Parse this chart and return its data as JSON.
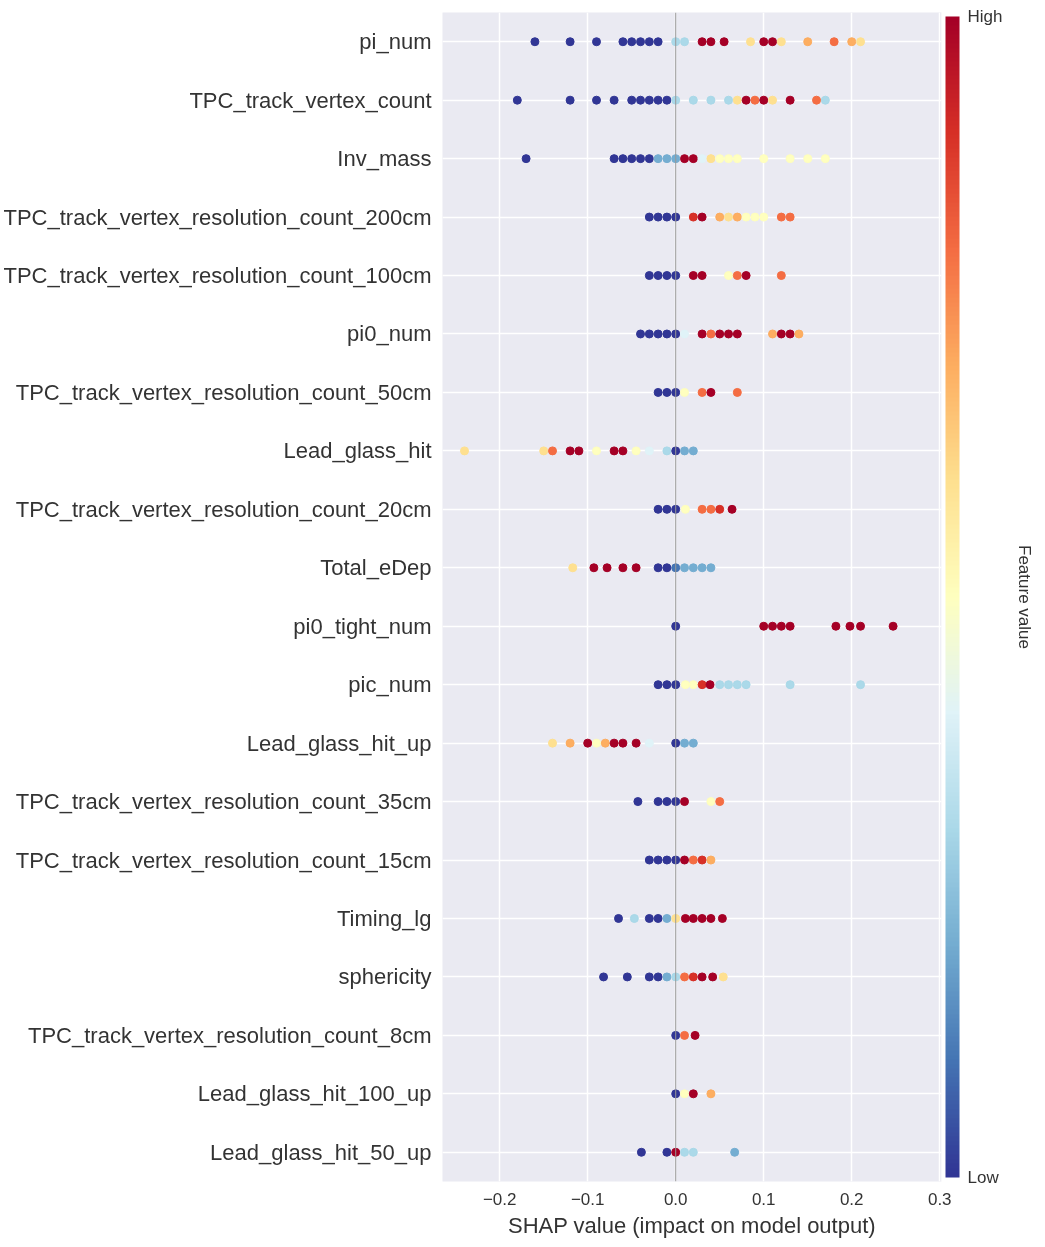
{
  "chart_data": {
    "type": "scatter",
    "orientation": "horizontal",
    "xlabel": "SHAP value (impact on model output)",
    "clabel": "Feature value",
    "categories": [
      "pi_num",
      "TPC_track_vertex_count",
      "Inv_mass",
      "TPC_track_vertex_resolution_count_200cm",
      "TPC_track_vertex_resolution_count_100cm",
      "pi0_num",
      "TPC_track_vertex_resolution_count_50cm",
      "Lead_glass_hit",
      "TPC_track_vertex_resolution_count_20cm",
      "Total_eDep",
      "pi0_tight_num",
      "pic_num",
      "Lead_glass_hit_up",
      "TPC_track_vertex_resolution_count_35cm",
      "TPC_track_vertex_resolution_count_15cm",
      "Timing_lg",
      "sphericity",
      "TPC_track_vertex_resolution_count_8cm",
      "Lead_glass_hit_100_up",
      "Lead_glass_hit_50_up"
    ],
    "series": [
      {
        "x": [
          "pi_num",
          "pi_num",
          "pi_num",
          "pi_num",
          "pi_num",
          "pi_num",
          "pi_num",
          "pi_num",
          "pi_num",
          "pi_num",
          "pi_num",
          "pi_num",
          "pi_num",
          "pi_num",
          "pi_num",
          "pi_num",
          "pi_num",
          "pi_num",
          "pi_num",
          "pi_num",
          "pi_num"
        ],
        "values": [
          -0.16,
          -0.12,
          -0.09,
          -0.06,
          -0.05,
          -0.04,
          -0.03,
          -0.02,
          0.0,
          0.01,
          0.03,
          0.04,
          0.055,
          0.085,
          0.1,
          0.11,
          0.12,
          0.15,
          0.18,
          0.2,
          0.21
        ],
        "cvalues": [
          0,
          0,
          0,
          0,
          0,
          0,
          0,
          0,
          0.3,
          0.3,
          1,
          1,
          1,
          0.6,
          1,
          1,
          0.6,
          0.7,
          0.8,
          0.7,
          0.6
        ],
        "colors": [
          "#313695",
          "#313695",
          "#313695",
          "#313695",
          "#313695",
          "#313695",
          "#313695",
          "#313695",
          "#abd9e9",
          "#abd9e9",
          "#a50026",
          "#a50026",
          "#a50026",
          "#fee090",
          "#a50026",
          "#a50026",
          "#fee090",
          "#fdae61",
          "#f46d43",
          "#fdae61",
          "#fee090"
        ]
      },
      {
        "x": [
          "TPC_track_vertex_count",
          "TPC_track_vertex_count",
          "TPC_track_vertex_count",
          "TPC_track_vertex_count",
          "TPC_track_vertex_count",
          "TPC_track_vertex_count",
          "TPC_track_vertex_count",
          "TPC_track_vertex_count",
          "TPC_track_vertex_count",
          "TPC_track_vertex_count",
          "TPC_track_vertex_count",
          "TPC_track_vertex_count",
          "TPC_track_vertex_count",
          "TPC_track_vertex_count",
          "TPC_track_vertex_count",
          "TPC_track_vertex_count",
          "TPC_track_vertex_count",
          "TPC_track_vertex_count",
          "TPC_track_vertex_count",
          "TPC_track_vertex_count",
          "TPC_track_vertex_count"
        ],
        "values": [
          -0.18,
          -0.12,
          -0.09,
          -0.07,
          -0.05,
          -0.04,
          -0.03,
          -0.02,
          -0.01,
          0.0,
          0.02,
          0.04,
          0.06,
          0.07,
          0.08,
          0.09,
          0.1,
          0.11,
          0.13,
          0.16,
          0.17
        ],
        "cvalues": [
          0,
          0,
          0,
          0,
          0,
          0,
          0,
          0,
          0,
          0.3,
          0.3,
          0.3,
          0.3,
          0.6,
          1,
          0.8,
          1,
          0.6,
          1,
          0.8,
          0.3
        ],
        "colors": [
          "#313695",
          "#313695",
          "#313695",
          "#313695",
          "#313695",
          "#313695",
          "#313695",
          "#313695",
          "#313695",
          "#abd9e9",
          "#abd9e9",
          "#abd9e9",
          "#abd9e9",
          "#fee090",
          "#a50026",
          "#f46d43",
          "#a50026",
          "#fee090",
          "#a50026",
          "#f46d43",
          "#abd9e9"
        ]
      },
      {
        "x": [
          "Inv_mass",
          "Inv_mass",
          "Inv_mass",
          "Inv_mass",
          "Inv_mass",
          "Inv_mass",
          "Inv_mass",
          "Inv_mass",
          "Inv_mass",
          "Inv_mass",
          "Inv_mass",
          "Inv_mass",
          "Inv_mass",
          "Inv_mass",
          "Inv_mass",
          "Inv_mass",
          "Inv_mass",
          "Inv_mass",
          "Inv_mass",
          "Inv_mass"
        ],
        "values": [
          -0.17,
          -0.07,
          -0.06,
          -0.05,
          -0.04,
          -0.03,
          -0.02,
          -0.01,
          0.0,
          0.01,
          0.02,
          0.03,
          0.04,
          0.05,
          0.06,
          0.07,
          0.1,
          0.13,
          0.15,
          0.17
        ],
        "cvalues": [
          0,
          0,
          0,
          0,
          0,
          0,
          0.2,
          0.2,
          0.2,
          1,
          1,
          0.4,
          0.6,
          0.5,
          0.5,
          0.5,
          0.5,
          0.5,
          0.5,
          0.5
        ],
        "colors": [
          "#313695",
          "#313695",
          "#313695",
          "#313695",
          "#313695",
          "#313695",
          "#74add1",
          "#74add1",
          "#74add1",
          "#a50026",
          "#a50026",
          "#e0f3f8",
          "#fee090",
          "#ffffbf",
          "#ffffbf",
          "#ffffbf",
          "#ffffbf",
          "#ffffbf",
          "#ffffbf",
          "#ffffbf"
        ]
      },
      {
        "x": [
          "TPC_track_vertex_resolution_count_200cm",
          "TPC_track_vertex_resolution_count_200cm",
          "TPC_track_vertex_resolution_count_200cm",
          "TPC_track_vertex_resolution_count_200cm",
          "TPC_track_vertex_resolution_count_200cm",
          "TPC_track_vertex_resolution_count_200cm",
          "TPC_track_vertex_resolution_count_200cm",
          "TPC_track_vertex_resolution_count_200cm",
          "TPC_track_vertex_resolution_count_200cm",
          "TPC_track_vertex_resolution_count_200cm",
          "TPC_track_vertex_resolution_count_200cm",
          "TPC_track_vertex_resolution_count_200cm",
          "TPC_track_vertex_resolution_count_200cm",
          "TPC_track_vertex_resolution_count_200cm"
        ],
        "values": [
          -0.03,
          -0.02,
          -0.01,
          0.0,
          0.02,
          0.03,
          0.05,
          0.06,
          0.07,
          0.08,
          0.09,
          0.1,
          0.12,
          0.13
        ],
        "cvalues": [
          0,
          0,
          0,
          0,
          0.9,
          1,
          0.7,
          0.6,
          0.7,
          0.5,
          0.5,
          0.5,
          0.8,
          0.8
        ],
        "colors": [
          "#313695",
          "#313695",
          "#313695",
          "#313695",
          "#d73027",
          "#a50026",
          "#fdae61",
          "#fee090",
          "#fdae61",
          "#ffffbf",
          "#ffffbf",
          "#ffffbf",
          "#f46d43",
          "#f46d43"
        ]
      },
      {
        "x": [
          "TPC_track_vertex_resolution_count_100cm",
          "TPC_track_vertex_resolution_count_100cm",
          "TPC_track_vertex_resolution_count_100cm",
          "TPC_track_vertex_resolution_count_100cm",
          "TPC_track_vertex_resolution_count_100cm",
          "TPC_track_vertex_resolution_count_100cm",
          "TPC_track_vertex_resolution_count_100cm",
          "TPC_track_vertex_resolution_count_100cm",
          "TPC_track_vertex_resolution_count_100cm",
          "TPC_track_vertex_resolution_count_100cm"
        ],
        "values": [
          -0.03,
          -0.02,
          -0.01,
          0.0,
          0.02,
          0.03,
          0.06,
          0.07,
          0.08,
          0.12
        ],
        "cvalues": [
          0,
          0,
          0,
          0,
          1,
          1,
          0.5,
          0.8,
          1,
          0.8
        ],
        "colors": [
          "#313695",
          "#313695",
          "#313695",
          "#313695",
          "#a50026",
          "#a50026",
          "#ffffbf",
          "#f46d43",
          "#a50026",
          "#f46d43"
        ]
      },
      {
        "x": [
          "pi0_num",
          "pi0_num",
          "pi0_num",
          "pi0_num",
          "pi0_num",
          "pi0_num",
          "pi0_num",
          "pi0_num",
          "pi0_num",
          "pi0_num",
          "pi0_num",
          "pi0_num",
          "pi0_num",
          "pi0_num",
          "pi0_num"
        ],
        "values": [
          -0.04,
          -0.03,
          -0.02,
          -0.01,
          0.0,
          0.01,
          0.03,
          0.04,
          0.05,
          0.06,
          0.07,
          0.11,
          0.12,
          0.13,
          0.14
        ],
        "cvalues": [
          0,
          0,
          0,
          0,
          0,
          0.4,
          1,
          0.8,
          1,
          1,
          1,
          0.7,
          1,
          1,
          0.7
        ],
        "colors": [
          "#313695",
          "#313695",
          "#313695",
          "#313695",
          "#313695",
          "#e0f3f8",
          "#a50026",
          "#f46d43",
          "#a50026",
          "#a50026",
          "#a50026",
          "#fdae61",
          "#a50026",
          "#a50026",
          "#fdae61"
        ]
      },
      {
        "x": [
          "TPC_track_vertex_resolution_count_50cm",
          "TPC_track_vertex_resolution_count_50cm",
          "TPC_track_vertex_resolution_count_50cm",
          "TPC_track_vertex_resolution_count_50cm",
          "TPC_track_vertex_resolution_count_50cm",
          "TPC_track_vertex_resolution_count_50cm",
          "TPC_track_vertex_resolution_count_50cm"
        ],
        "values": [
          -0.02,
          -0.01,
          0.0,
          0.01,
          0.03,
          0.04,
          0.07
        ],
        "cvalues": [
          0,
          0,
          0,
          0.5,
          0.8,
          1,
          0.8
        ],
        "colors": [
          "#313695",
          "#313695",
          "#313695",
          "#ffffbf",
          "#f46d43",
          "#a50026",
          "#f46d43"
        ]
      },
      {
        "x": [
          "Lead_glass_hit",
          "Lead_glass_hit",
          "Lead_glass_hit",
          "Lead_glass_hit",
          "Lead_glass_hit",
          "Lead_glass_hit",
          "Lead_glass_hit",
          "Lead_glass_hit",
          "Lead_glass_hit",
          "Lead_glass_hit",
          "Lead_glass_hit",
          "Lead_glass_hit",
          "Lead_glass_hit",
          "Lead_glass_hit"
        ],
        "values": [
          -0.24,
          -0.15,
          -0.14,
          -0.12,
          -0.11,
          -0.09,
          -0.07,
          -0.06,
          -0.045,
          -0.03,
          -0.01,
          0.0,
          0.01,
          0.02
        ],
        "cvalues": [
          0.6,
          0.6,
          0.8,
          1,
          1,
          0.5,
          1,
          1,
          0.5,
          0.4,
          0.3,
          0,
          0.2,
          0.2
        ],
        "colors": [
          "#fee090",
          "#fee090",
          "#f46d43",
          "#a50026",
          "#a50026",
          "#ffffbf",
          "#a50026",
          "#a50026",
          "#ffffbf",
          "#e0f3f8",
          "#abd9e9",
          "#313695",
          "#74add1",
          "#74add1"
        ]
      },
      {
        "x": [
          "TPC_track_vertex_resolution_count_20cm",
          "TPC_track_vertex_resolution_count_20cm",
          "TPC_track_vertex_resolution_count_20cm",
          "TPC_track_vertex_resolution_count_20cm",
          "TPC_track_vertex_resolution_count_20cm",
          "TPC_track_vertex_resolution_count_20cm",
          "TPC_track_vertex_resolution_count_20cm",
          "TPC_track_vertex_resolution_count_20cm"
        ],
        "values": [
          -0.02,
          -0.01,
          0.0,
          0.011,
          0.03,
          0.04,
          0.05,
          0.064
        ],
        "cvalues": [
          0,
          0,
          0,
          0.5,
          0.8,
          0.8,
          0.9,
          1
        ],
        "colors": [
          "#313695",
          "#313695",
          "#313695",
          "#ffffbf",
          "#f46d43",
          "#f46d43",
          "#d73027",
          "#a50026"
        ]
      },
      {
        "x": [
          "Total_eDep",
          "Total_eDep",
          "Total_eDep",
          "Total_eDep",
          "Total_eDep",
          "Total_eDep",
          "Total_eDep",
          "Total_eDep",
          "Total_eDep",
          "Total_eDep",
          "Total_eDep",
          "Total_eDep"
        ],
        "values": [
          -0.117,
          -0.093,
          -0.078,
          -0.06,
          -0.045,
          -0.02,
          -0.01,
          0.0,
          0.01,
          0.02,
          0.03,
          0.04
        ],
        "cvalues": [
          0.6,
          1,
          1,
          1,
          1,
          0,
          0,
          0.1,
          0.2,
          0.2,
          0.2,
          0.2
        ],
        "colors": [
          "#fee090",
          "#a50026",
          "#a50026",
          "#a50026",
          "#a50026",
          "#313695",
          "#313695",
          "#4575b4",
          "#74add1",
          "#74add1",
          "#74add1",
          "#74add1"
        ]
      },
      {
        "x": [
          "pi0_tight_num",
          "pi0_tight_num",
          "pi0_tight_num",
          "pi0_tight_num",
          "pi0_tight_num",
          "pi0_tight_num",
          "pi0_tight_num",
          "pi0_tight_num",
          "pi0_tight_num"
        ],
        "values": [
          0.0,
          0.1,
          0.11,
          0.12,
          0.13,
          0.182,
          0.198,
          0.21,
          0.247
        ],
        "cvalues": [
          0,
          1,
          1,
          1,
          1,
          1,
          1,
          1,
          1
        ],
        "colors": [
          "#313695",
          "#a50026",
          "#a50026",
          "#a50026",
          "#a50026",
          "#a50026",
          "#a50026",
          "#a50026",
          "#a50026"
        ]
      },
      {
        "x": [
          "pic_num",
          "pic_num",
          "pic_num",
          "pic_num",
          "pic_num",
          "pic_num",
          "pic_num",
          "pic_num",
          "pic_num",
          "pic_num",
          "pic_num",
          "pic_num",
          "pic_num"
        ],
        "values": [
          -0.02,
          -0.01,
          0.0,
          0.011,
          0.02,
          0.03,
          0.039,
          0.05,
          0.06,
          0.07,
          0.08,
          0.13,
          0.21
        ],
        "cvalues": [
          0,
          0,
          0,
          0.5,
          0.5,
          0.9,
          1,
          0.3,
          0.3,
          0.3,
          0.3,
          0.3,
          0.3
        ],
        "colors": [
          "#313695",
          "#313695",
          "#313695",
          "#ffffbf",
          "#ffffbf",
          "#d73027",
          "#a50026",
          "#abd9e9",
          "#abd9e9",
          "#abd9e9",
          "#abd9e9",
          "#abd9e9",
          "#abd9e9"
        ]
      },
      {
        "x": [
          "Lead_glass_hit_up",
          "Lead_glass_hit_up",
          "Lead_glass_hit_up",
          "Lead_glass_hit_up",
          "Lead_glass_hit_up",
          "Lead_glass_hit_up",
          "Lead_glass_hit_up",
          "Lead_glass_hit_up",
          "Lead_glass_hit_up",
          "Lead_glass_hit_up",
          "Lead_glass_hit_up",
          "Lead_glass_hit_up"
        ],
        "values": [
          -0.14,
          -0.12,
          -0.1,
          -0.09,
          -0.08,
          -0.07,
          -0.06,
          -0.045,
          -0.03,
          0.0,
          0.01,
          0.02
        ],
        "cvalues": [
          0.6,
          0.7,
          1,
          0.5,
          0.7,
          1,
          1,
          1,
          0.4,
          0,
          0.2,
          0.2
        ],
        "colors": [
          "#fee090",
          "#fdae61",
          "#a50026",
          "#ffffbf",
          "#fdae61",
          "#a50026",
          "#a50026",
          "#a50026",
          "#e0f3f8",
          "#313695",
          "#74add1",
          "#74add1"
        ]
      },
      {
        "x": [
          "TPC_track_vertex_resolution_count_35cm",
          "TPC_track_vertex_resolution_count_35cm",
          "TPC_track_vertex_resolution_count_35cm",
          "TPC_track_vertex_resolution_count_35cm",
          "TPC_track_vertex_resolution_count_35cm",
          "TPC_track_vertex_resolution_count_35cm",
          "TPC_track_vertex_resolution_count_35cm"
        ],
        "values": [
          -0.043,
          -0.02,
          -0.01,
          0.0,
          0.01,
          0.04,
          0.05
        ],
        "cvalues": [
          0,
          0,
          0,
          0,
          1,
          0.5,
          0.8
        ],
        "colors": [
          "#313695",
          "#313695",
          "#313695",
          "#313695",
          "#a50026",
          "#ffffbf",
          "#f46d43"
        ]
      },
      {
        "x": [
          "TPC_track_vertex_resolution_count_15cm",
          "TPC_track_vertex_resolution_count_15cm",
          "TPC_track_vertex_resolution_count_15cm",
          "TPC_track_vertex_resolution_count_15cm",
          "TPC_track_vertex_resolution_count_15cm",
          "TPC_track_vertex_resolution_count_15cm",
          "TPC_track_vertex_resolution_count_15cm",
          "TPC_track_vertex_resolution_count_15cm"
        ],
        "values": [
          -0.03,
          -0.02,
          -0.01,
          0.0,
          0.01,
          0.02,
          0.03,
          0.04
        ],
        "cvalues": [
          0,
          0,
          0,
          0,
          1,
          0.8,
          0.9,
          0.7
        ],
        "colors": [
          "#313695",
          "#313695",
          "#313695",
          "#313695",
          "#a50026",
          "#f46d43",
          "#d73027",
          "#fdae61"
        ]
      },
      {
        "x": [
          "Timing_lg",
          "Timing_lg",
          "Timing_lg",
          "Timing_lg",
          "Timing_lg",
          "Timing_lg",
          "Timing_lg",
          "Timing_lg",
          "Timing_lg",
          "Timing_lg",
          "Timing_lg"
        ],
        "values": [
          -0.065,
          -0.047,
          -0.03,
          -0.02,
          -0.01,
          0.0,
          0.011,
          0.02,
          0.03,
          0.04,
          0.053
        ],
        "cvalues": [
          0,
          0.3,
          0,
          0,
          0.2,
          0.6,
          1,
          1,
          1,
          1,
          1
        ],
        "colors": [
          "#313695",
          "#abd9e9",
          "#313695",
          "#313695",
          "#74add1",
          "#fee090",
          "#a50026",
          "#a50026",
          "#a50026",
          "#a50026",
          "#a50026"
        ]
      },
      {
        "x": [
          "sphericity",
          "sphericity",
          "sphericity",
          "sphericity",
          "sphericity",
          "sphericity",
          "sphericity",
          "sphericity",
          "sphericity",
          "sphericity",
          "sphericity"
        ],
        "values": [
          -0.082,
          -0.055,
          -0.03,
          -0.02,
          -0.01,
          0.0,
          0.01,
          0.02,
          0.03,
          0.042,
          0.054
        ],
        "cvalues": [
          0,
          0,
          0,
          0,
          0.2,
          0.3,
          0.8,
          0.9,
          1,
          1,
          0.6
        ],
        "colors": [
          "#313695",
          "#313695",
          "#313695",
          "#313695",
          "#74add1",
          "#abd9e9",
          "#f46d43",
          "#d73027",
          "#a50026",
          "#a50026",
          "#fee090"
        ]
      },
      {
        "x": [
          "TPC_track_vertex_resolution_count_8cm",
          "TPC_track_vertex_resolution_count_8cm",
          "TPC_track_vertex_resolution_count_8cm"
        ],
        "values": [
          0.0,
          0.01,
          0.022
        ],
        "cvalues": [
          0,
          0.8,
          1
        ],
        "colors": [
          "#313695",
          "#f46d43",
          "#a50026"
        ]
      },
      {
        "x": [
          "Lead_glass_hit_100_up",
          "Lead_glass_hit_100_up",
          "Lead_glass_hit_100_up",
          "Lead_glass_hit_100_up"
        ],
        "values": [
          0.0,
          0.01,
          0.02,
          0.04
        ],
        "cvalues": [
          0,
          0.5,
          1,
          0.7
        ],
        "colors": [
          "#313695",
          "#ffffbf",
          "#a50026",
          "#fdae61"
        ]
      },
      {
        "x": [
          "Lead_glass_hit_50_up",
          "Lead_glass_hit_50_up",
          "Lead_glass_hit_50_up",
          "Lead_glass_hit_50_up",
          "Lead_glass_hit_50_up",
          "Lead_glass_hit_50_up"
        ],
        "values": [
          -0.039,
          -0.01,
          0.0,
          0.01,
          0.02,
          0.067
        ],
        "cvalues": [
          0,
          0,
          1,
          0.3,
          0.3,
          0.2
        ],
        "colors": [
          "#313695",
          "#313695",
          "#a50026",
          "#abd9e9",
          "#abd9e9",
          "#74add1"
        ]
      }
    ],
    "xlim": [
      -0.265,
      0.302
    ],
    "xticks": [
      {
        "value": -0.2,
        "label": "−0.2"
      },
      {
        "value": -0.1,
        "label": "−0.1"
      },
      {
        "value": 0.0,
        "label": "0.0"
      },
      {
        "value": 0.1,
        "label": "0.1"
      },
      {
        "value": 0.2,
        "label": "0.2"
      },
      {
        "value": 0.3,
        "label": "0.3"
      }
    ],
    "clim": [
      0,
      1
    ],
    "cticks": [
      {
        "value": 0,
        "label": "Low"
      },
      {
        "value": 1,
        "label": "High"
      }
    ],
    "ref_lines": [
      {
        "axis": "x",
        "value": 0,
        "color": "#999999"
      }
    ],
    "grid": true,
    "marker": "circle"
  }
}
